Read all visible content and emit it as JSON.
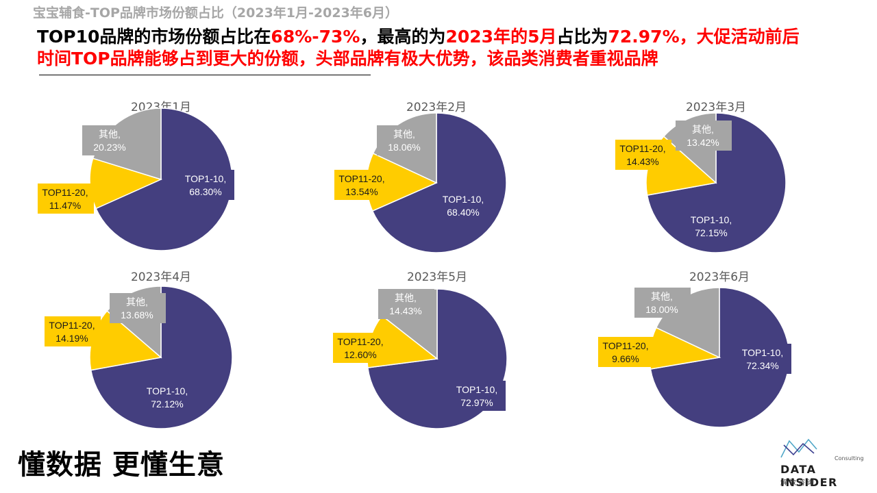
{
  "header": {
    "subtitle": "宝宝辅食-TOP品牌市场份额占比（2023年1月-2023年6月）",
    "headline_parts": [
      {
        "text": "TOP10品牌的市场份额占比在",
        "style": "black"
      },
      {
        "text": "68%-73%",
        "style": "red"
      },
      {
        "text": "，最高的为",
        "style": "black"
      },
      {
        "text": "2023年的5月",
        "style": "red"
      },
      {
        "text": "占比为",
        "style": "black"
      },
      {
        "text": "72.97%，大促活动前后时间TOP品牌能够占到更大的份额，头部品牌有极大优势，该品类消费者重视品牌",
        "style": "red"
      }
    ]
  },
  "colors": {
    "top1_10": "#443f7f",
    "top11_20": "#ffcc00",
    "other": "#a5a5a5"
  },
  "chart_data": [
    {
      "type": "pie",
      "title": "2023年1月",
      "labels": [
        "TOP1-10,",
        "TOP11-20,",
        "其他,"
      ],
      "values": [
        68.3,
        11.47,
        20.23
      ],
      "value_labels": [
        "68.30%",
        "11.47%",
        "20.23%"
      ]
    },
    {
      "type": "pie",
      "title": "2023年2月",
      "labels": [
        "TOP1-10,",
        "TOP11-20,",
        "其他,"
      ],
      "values": [
        68.4,
        13.54,
        18.06
      ],
      "value_labels": [
        "68.40%",
        "13.54%",
        "18.06%"
      ]
    },
    {
      "type": "pie",
      "title": "2023年3月",
      "labels": [
        "TOP1-10,",
        "TOP11-20,",
        "其他,"
      ],
      "values": [
        72.15,
        14.43,
        13.42
      ],
      "value_labels": [
        "72.15%",
        "14.43%",
        "13.42%"
      ]
    },
    {
      "type": "pie",
      "title": "2023年4月",
      "labels": [
        "TOP1-10,",
        "TOP11-20,",
        "其他,"
      ],
      "values": [
        72.12,
        14.19,
        13.68
      ],
      "value_labels": [
        "72.12%",
        "14.19%",
        "13.68%"
      ]
    },
    {
      "type": "pie",
      "title": "2023年5月",
      "labels": [
        "TOP1-10,",
        "TOP11-20,",
        "其他,"
      ],
      "values": [
        72.97,
        12.6,
        14.43
      ],
      "value_labels": [
        "72.97%",
        "12.60%",
        "14.43%"
      ]
    },
    {
      "type": "pie",
      "title": "2023年6月",
      "labels": [
        "TOP1-10,",
        "TOP11-20,",
        "其他,"
      ],
      "values": [
        72.34,
        9.66,
        18.0
      ],
      "value_labels": [
        "72.34%",
        "9.66%",
        "18.00%"
      ]
    }
  ],
  "footer": {
    "slogan": "懂数据 更懂生意",
    "logo": {
      "name": "DATA INSIDER",
      "tagline": "Consulting",
      "cn_name": "解数咨询"
    }
  }
}
